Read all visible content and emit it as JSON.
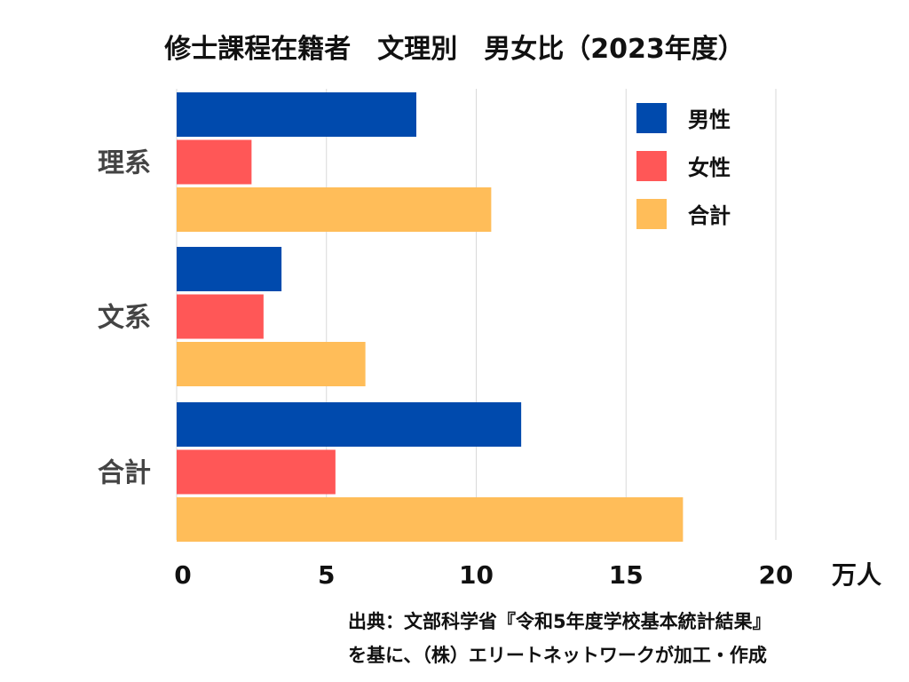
{
  "chart_data": {
    "type": "bar",
    "orientation": "horizontal",
    "title": "修士課程在籍者　文理別　男女比（2023年度）",
    "categories": [
      "理系",
      "文系",
      "合計"
    ],
    "series": [
      {
        "name": "男性",
        "color": "#004AAD",
        "values": [
          8.0,
          3.5,
          11.5
        ]
      },
      {
        "name": "女性",
        "color": "#FF5757",
        "values": [
          2.5,
          2.9,
          5.3
        ]
      },
      {
        "name": "合計",
        "color": "#FFBD59",
        "values": [
          10.5,
          6.3,
          16.9
        ]
      }
    ],
    "xlim": [
      0,
      20
    ],
    "xticks": [
      "0",
      "5",
      "10",
      "15",
      "20"
    ],
    "xlabel": "万人",
    "grid": true,
    "legend_position": "top-right"
  },
  "source": {
    "line1": "出典：文部科学省『令和5年度学校基本統計結果』",
    "line2": "を基に、（株）エリートネットワークが加工・作成"
  }
}
